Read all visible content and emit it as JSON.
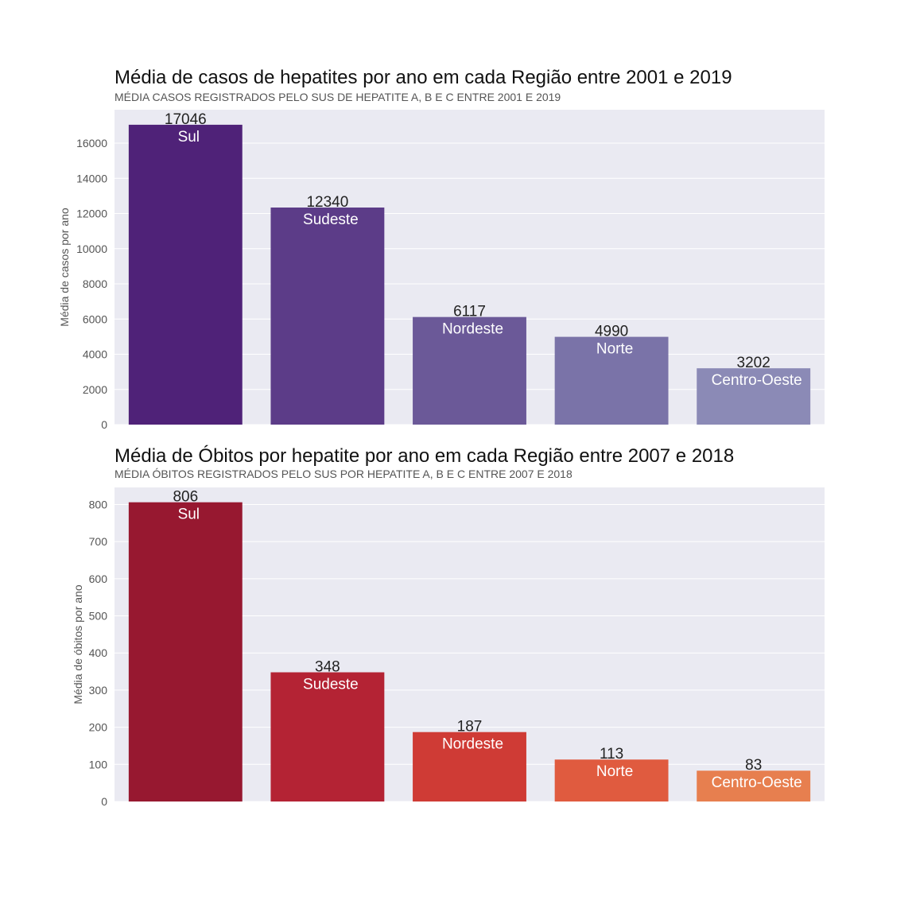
{
  "chart_data": [
    {
      "type": "bar",
      "title": "Média de casos de hepatites por ano em cada Região entre 2001 e 2019",
      "subtitle": "MÉDIA CASOS REGISTRADOS PELO SUS DE HEPATITE A, B E C ENTRE 2001 E 2019",
      "ylabel": "Média de casos por ano",
      "xlabel": "",
      "categories": [
        "Sul",
        "Sudeste",
        "Nordeste",
        "Norte",
        "Centro-Oeste"
      ],
      "values": [
        17046,
        12340,
        6117,
        4990,
        3202
      ],
      "value_labels": [
        "17046",
        "12340",
        "6117",
        "4990",
        "3202"
      ],
      "ylim": [
        0,
        17900
      ],
      "yticks": [
        0,
        2000,
        4000,
        6000,
        8000,
        10000,
        12000,
        14000,
        16000
      ],
      "ytick_labels": [
        "0",
        "2000",
        "4000",
        "6000",
        "8000",
        "10000",
        "12000",
        "14000",
        "16000"
      ],
      "colors": [
        "#4f2278",
        "#5c3c88",
        "#6b5998",
        "#7a73a8",
        "#8b8ab6"
      ],
      "background": "#eaeaf2",
      "grid": true,
      "legend": "none"
    },
    {
      "type": "bar",
      "title": "Média de Óbitos por hepatite por ano em cada Região entre 2007 e 2018",
      "subtitle": "MÉDIA ÓBITOS REGISTRADOS PELO SUS POR HEPATITE A, B E C ENTRE 2007 E 2018",
      "ylabel": "Média de óbitos por ano",
      "xlabel": "",
      "categories": [
        "Sul",
        "Sudeste",
        "Nordeste",
        "Norte",
        "Centro-Oeste"
      ],
      "values": [
        806,
        348,
        187,
        113,
        83
      ],
      "value_labels": [
        "806",
        "348",
        "187",
        "113",
        "83"
      ],
      "ylim": [
        0,
        846
      ],
      "yticks": [
        0,
        100,
        200,
        300,
        400,
        500,
        600,
        700,
        800
      ],
      "ytick_labels": [
        "0",
        "100",
        "200",
        "300",
        "400",
        "500",
        "600",
        "700",
        "800"
      ],
      "colors": [
        "#971830",
        "#b42334",
        "#cf3b35",
        "#e05b3f",
        "#e77f4f"
      ],
      "background": "#eaeaf2",
      "grid": true,
      "legend": "none"
    }
  ]
}
